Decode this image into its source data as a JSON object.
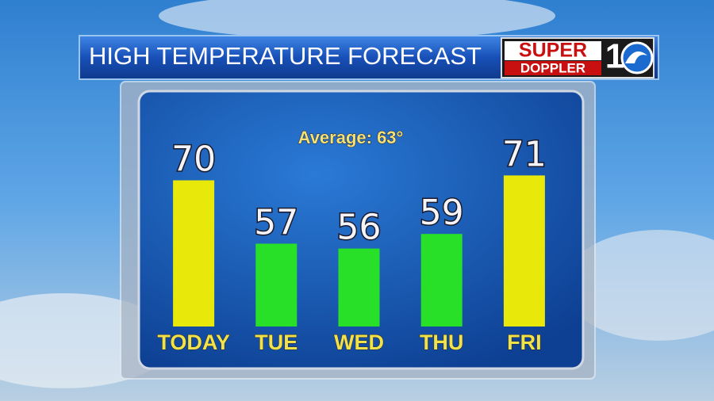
{
  "chart_data": {
    "type": "bar",
    "title": "HIGH TEMPERATURE FORECAST",
    "annotation": "Average: 63°",
    "categories": [
      "TODAY",
      "TUE",
      "WED",
      "THU",
      "FRI"
    ],
    "values": [
      70,
      57,
      56,
      59,
      71
    ],
    "colors": [
      "#e8e80a",
      "#28e028",
      "#28e028",
      "#28e028",
      "#e8e80a"
    ],
    "ylim": [
      40,
      87
    ]
  },
  "logo": {
    "top": "SUPER",
    "bottom": "DOPPLER",
    "channel": "1"
  }
}
